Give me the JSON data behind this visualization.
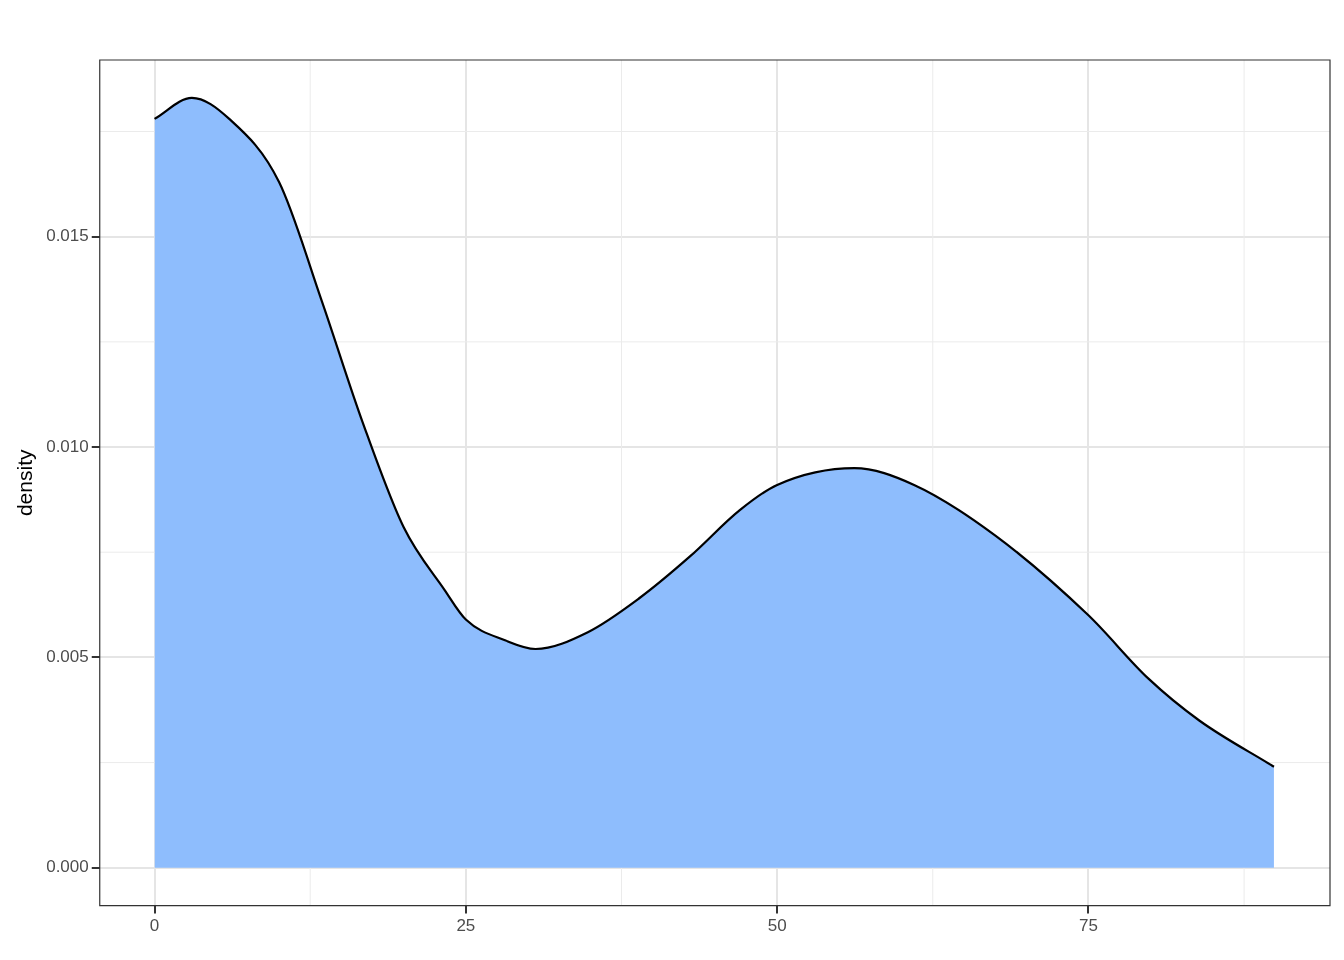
{
  "chart_data": {
    "type": "area",
    "ylabel": "density",
    "series": [
      {
        "color": "#8ebdfd",
        "x": [
          0,
          3,
          6,
          10,
          13.4,
          16.7,
          20,
          23.3,
          25,
          28.2,
          30.6,
          34.8,
          38.9,
          43,
          47,
          50,
          56.2,
          61,
          67.5,
          75,
          79.8,
          83.9,
          89.9
        ],
        "values": [
          0.0178,
          0.0183,
          0.0178,
          0.0163,
          0.0135,
          0.0106,
          0.0081,
          0.0066,
          0.0059,
          0.0054,
          0.0052,
          0.0056,
          0.0064,
          0.0074,
          0.0085,
          0.0091,
          0.0095,
          0.0091,
          0.0079,
          0.006,
          0.0045,
          0.0035,
          0.0024
        ]
      }
    ],
    "xlim": [
      -4.4,
      94.4
    ],
    "xticks": [
      0,
      25,
      50,
      75
    ],
    "ylim": [
      -0.0009,
      0.0192
    ],
    "yticks": [
      {
        "value": 0,
        "label": "0.000"
      },
      {
        "value": 0.005,
        "label": "0.005"
      },
      {
        "value": 0.01,
        "label": "0.010"
      },
      {
        "value": 0.015,
        "label": "0.015"
      }
    ],
    "grid": true,
    "legend": false
  }
}
